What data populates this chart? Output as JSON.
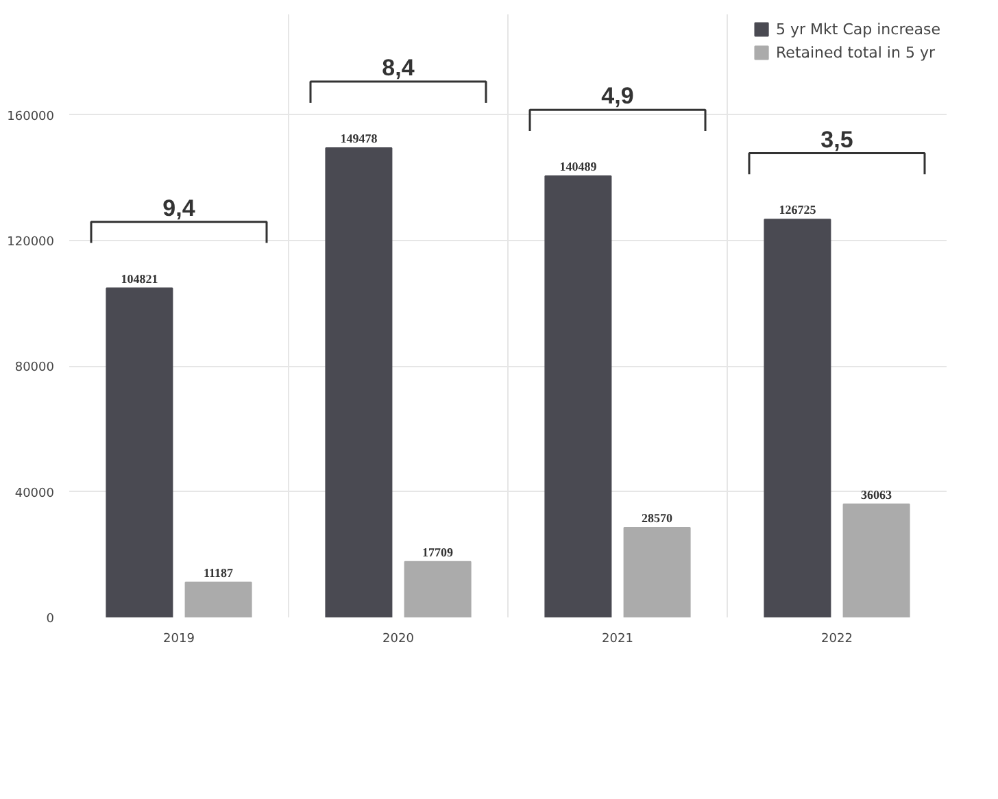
{
  "chart_data": {
    "type": "bar",
    "categories": [
      "2019",
      "2020",
      "2021",
      "2022"
    ],
    "series": [
      {
        "name": "5 yr Mkt Cap increase",
        "color": "#4a4a52",
        "values": [
          104821,
          149478,
          140489,
          126725
        ]
      },
      {
        "name": "Retained total in 5 yr",
        "color": "#ababab",
        "values": [
          11187,
          17709,
          28570,
          36063
        ]
      }
    ],
    "ylim": [
      0,
      192000
    ],
    "yticks": [
      0,
      40000,
      80000,
      120000,
      160000
    ],
    "grid": true,
    "legend": "top right",
    "data_labels": true,
    "annotations": [
      "9,4",
      "8,4",
      "4,9",
      "3,5"
    ]
  }
}
